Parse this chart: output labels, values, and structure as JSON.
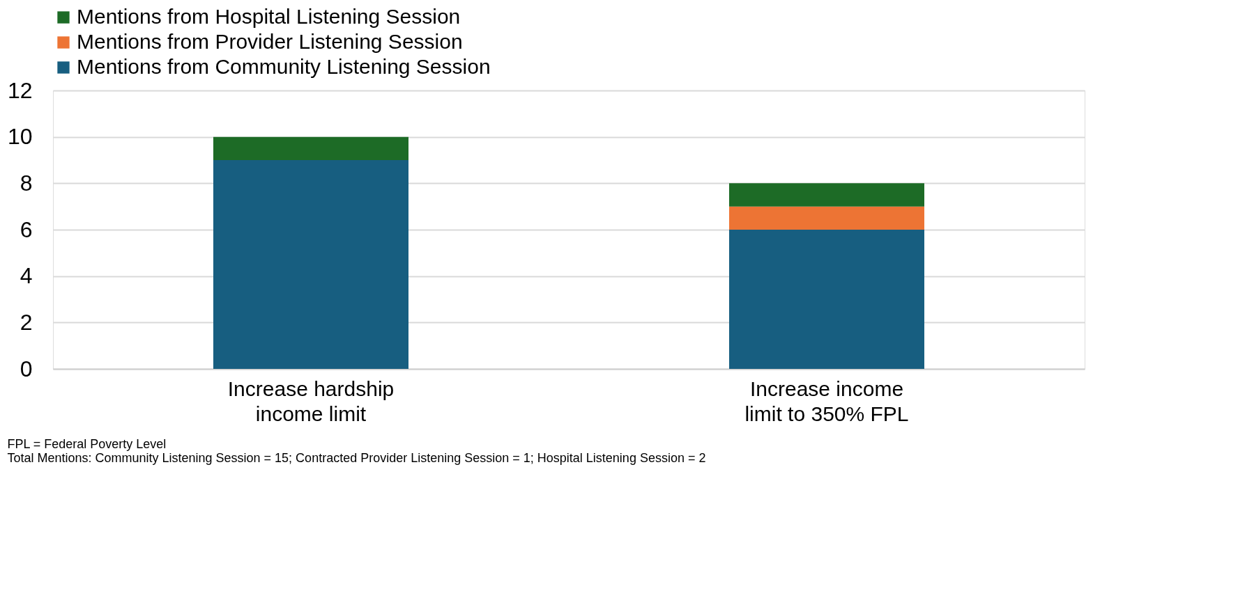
{
  "chart_data": {
    "type": "bar",
    "stacked": true,
    "categories": [
      "Increase hardship income limit",
      "Increase income limit to 350% FPL"
    ],
    "series": [
      {
        "name": "Mentions from Community Listening Session",
        "color": "#175e80",
        "values": [
          9,
          6
        ]
      },
      {
        "name": "Mentions from Provider Listening Session",
        "color": "#ed7434",
        "values": [
          null,
          1
        ]
      },
      {
        "name": "Mentions from Hospital Listening Session",
        "color": "#1d6b26",
        "values": [
          1,
          1
        ]
      }
    ],
    "ylim": [
      0,
      12
    ],
    "yticks": [
      0,
      2,
      4,
      6,
      8,
      10,
      12
    ],
    "grid": "y",
    "legend": "top",
    "annotations": [
      "FPL = Federal Poverty Level",
      "Total Mentions: Community Listening Session = 15; Contracted Provider Listening Session = 1; Hospital Listening Session = 2"
    ]
  }
}
